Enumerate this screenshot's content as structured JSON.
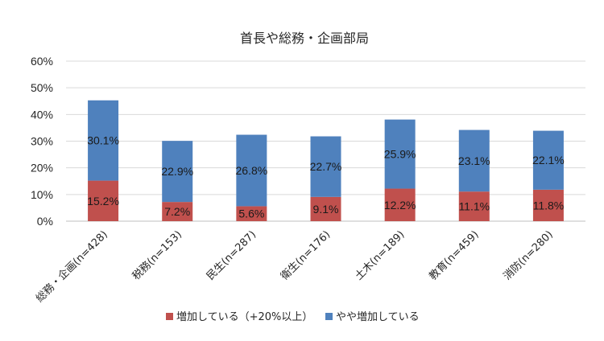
{
  "chart_data": {
    "type": "bar",
    "stacked": true,
    "title": "首長や総務・企画部局",
    "categories": [
      "総務・企画(n=428)",
      "税務(n=153)",
      "民生(n=287)",
      "衛生(n=176)",
      "土木(n=189)",
      "教育(n=459)",
      "消防(n=280)"
    ],
    "series": [
      {
        "name": "増加している（+20%以上）",
        "color": "#c0504d",
        "values": [
          15.2,
          7.2,
          5.6,
          9.1,
          12.2,
          11.1,
          11.8
        ]
      },
      {
        "name": "やや増加している",
        "color": "#4f81bd",
        "values": [
          30.1,
          22.9,
          26.8,
          22.7,
          25.9,
          23.1,
          22.1
        ]
      }
    ],
    "data_labels": [
      [
        "15.2%",
        "7.2%",
        "5.6%",
        "9.1%",
        "12.2%",
        "11.1%",
        "11.8%"
      ],
      [
        "30.1%",
        "22.9%",
        "26.8%",
        "22.7%",
        "25.9%",
        "23.1%",
        "22.1%"
      ]
    ],
    "yticks": [
      "0%",
      "10%",
      "20%",
      "30%",
      "40%",
      "50%",
      "60%"
    ],
    "ylim": [
      0,
      60
    ],
    "grid": true,
    "legend_position": "bottom"
  }
}
